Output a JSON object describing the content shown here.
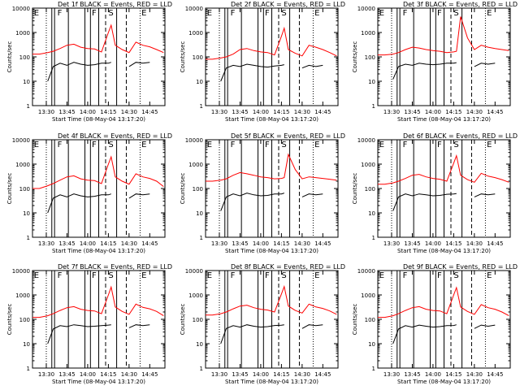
{
  "figure": {
    "xlabel": "Start Time (08-May-04 13:17:20)",
    "ylabel": "Counts/sec",
    "title_suffix": " BLACK = Events, RED = LLD",
    "y_tick_labels": [
      "1",
      "10",
      "100",
      "1000",
      "10000"
    ],
    "x_tick_labels": [
      "13:30",
      "13:45",
      "14:00",
      "14:15",
      "14:30",
      "14:45"
    ],
    "colors": {
      "events": "#000000",
      "lld": "#ff0000"
    }
  },
  "chart_data": [
    {
      "type": "line",
      "title": "Det 1f BLACK = Events, RED = LLD",
      "detector": "Det 1f",
      "xlim": [
        "13:20",
        "14:56"
      ],
      "ylim": [
        1,
        10000
      ],
      "yscale": "log",
      "region_markers": [
        "E",
        "F",
        "F",
        "S",
        "E"
      ],
      "series": [
        {
          "name": "BLACK = Events",
          "x": [
            "13:25",
            "13:31",
            "13:35",
            "13:40",
            "13:45",
            "13:50",
            "13:55",
            "14:00",
            "14:05",
            "14:10",
            "14:15",
            "14:17",
            "14:20",
            "14:30",
            "14:35",
            "14:40",
            "14:45",
            "14:55"
          ],
          "y": [
            null,
            10,
            40,
            55,
            45,
            60,
            50,
            45,
            48,
            55,
            55,
            60,
            null,
            40,
            60,
            55,
            60,
            null
          ]
        },
        {
          "name": "RED = LLD",
          "x": [
            "13:20",
            "13:25",
            "13:31",
            "13:35",
            "13:40",
            "13:45",
            "13:50",
            "13:55",
            "14:00",
            "14:05",
            "14:10",
            "14:15",
            "14:17",
            "14:20",
            "14:25",
            "14:30",
            "14:35",
            "14:40",
            "14:45",
            "14:50",
            "14:55"
          ],
          "y": [
            130,
            130,
            150,
            170,
            220,
            300,
            330,
            250,
            220,
            210,
            160,
            1000,
            2000,
            300,
            200,
            150,
            400,
            300,
            260,
            200,
            150
          ]
        }
      ]
    },
    {
      "type": "line",
      "title": "Det 2f BLACK = Events, RED = LLD",
      "detector": "Det 2f",
      "xlim": [
        "13:20",
        "14:56"
      ],
      "ylim": [
        1,
        10000
      ],
      "yscale": "log",
      "region_markers": [
        "E",
        "F",
        "F",
        "S",
        "E"
      ],
      "series": [
        {
          "name": "BLACK = Events",
          "x": [
            "13:25",
            "13:31",
            "13:35",
            "13:40",
            "13:45",
            "13:50",
            "13:55",
            "14:00",
            "14:05",
            "14:10",
            "14:15",
            "14:17",
            "14:20",
            "14:30",
            "14:35",
            "14:40",
            "14:45",
            "14:55"
          ],
          "y": [
            null,
            10,
            35,
            45,
            40,
            50,
            45,
            40,
            38,
            42,
            45,
            48,
            null,
            35,
            45,
            40,
            45,
            null
          ]
        },
        {
          "name": "RED = LLD",
          "x": [
            "13:20",
            "13:25",
            "13:31",
            "13:35",
            "13:40",
            "13:45",
            "13:50",
            "13:55",
            "14:00",
            "14:05",
            "14:10",
            "14:15",
            "14:17",
            "14:20",
            "14:25",
            "14:30",
            "14:35",
            "14:40",
            "14:45",
            "14:50",
            "14:55"
          ],
          "y": [
            80,
            80,
            90,
            100,
            130,
            200,
            220,
            180,
            160,
            150,
            120,
            700,
            1500,
            200,
            140,
            110,
            300,
            250,
            200,
            150,
            110
          ]
        }
      ]
    },
    {
      "type": "line",
      "title": "Det 3f BLACK = Events, RED = LLD",
      "detector": "Det 3f",
      "xlim": [
        "13:20",
        "14:56"
      ],
      "ylim": [
        1,
        10000
      ],
      "yscale": "log",
      "region_markers": [
        "E",
        "F",
        "F",
        "S",
        "E"
      ],
      "series": [
        {
          "name": "BLACK = Events",
          "x": [
            "13:25",
            "13:31",
            "13:35",
            "13:40",
            "13:45",
            "13:50",
            "13:55",
            "14:00",
            "14:05",
            "14:10",
            "14:15",
            "14:17",
            "14:20",
            "14:30",
            "14:35",
            "14:40",
            "14:45",
            "14:55"
          ],
          "y": [
            null,
            12,
            40,
            50,
            45,
            55,
            50,
            48,
            50,
            55,
            55,
            58,
            null,
            40,
            55,
            50,
            55,
            null
          ]
        },
        {
          "name": "RED = LLD",
          "x": [
            "13:20",
            "13:25",
            "13:31",
            "13:35",
            "13:40",
            "13:45",
            "13:50",
            "13:55",
            "14:00",
            "14:05",
            "14:10",
            "14:15",
            "14:17",
            "14:20",
            "14:25",
            "14:30",
            "14:35",
            "14:40",
            "14:45",
            "14:50",
            "14:55"
          ],
          "y": [
            120,
            120,
            130,
            150,
            200,
            250,
            230,
            200,
            180,
            170,
            150,
            160,
            170,
            4500,
            600,
            200,
            300,
            250,
            220,
            200,
            180
          ]
        }
      ]
    },
    {
      "type": "line",
      "title": "Det 4f BLACK = Events, RED = LLD",
      "detector": "Det 4f",
      "xlim": [
        "13:20",
        "14:56"
      ],
      "ylim": [
        1,
        10000
      ],
      "yscale": "log",
      "region_markers": [
        "E",
        "F",
        "F",
        "S",
        "E"
      ],
      "series": [
        {
          "name": "BLACK = Events",
          "x": [
            "13:25",
            "13:31",
            "13:35",
            "13:40",
            "13:45",
            "13:50",
            "13:55",
            "14:00",
            "14:05",
            "14:10",
            "14:15",
            "14:17",
            "14:20",
            "14:30",
            "14:35",
            "14:40",
            "14:45",
            "14:55"
          ],
          "y": [
            null,
            10,
            40,
            55,
            45,
            60,
            50,
            45,
            48,
            55,
            55,
            60,
            null,
            40,
            60,
            55,
            60,
            null
          ]
        },
        {
          "name": "RED = LLD",
          "x": [
            "13:20",
            "13:25",
            "13:31",
            "13:35",
            "13:40",
            "13:45",
            "13:50",
            "13:55",
            "14:00",
            "14:05",
            "14:10",
            "14:15",
            "14:17",
            "14:20",
            "14:25",
            "14:30",
            "14:35",
            "14:40",
            "14:45",
            "14:50",
            "14:55"
          ],
          "y": [
            100,
            100,
            130,
            160,
            220,
            300,
            330,
            250,
            220,
            210,
            160,
            1000,
            2000,
            300,
            200,
            150,
            400,
            300,
            260,
            200,
            120
          ]
        }
      ]
    },
    {
      "type": "line",
      "title": "Det 5f BLACK = Events, RED = LLD",
      "detector": "Det 5f",
      "xlim": [
        "13:20",
        "14:56"
      ],
      "ylim": [
        1,
        10000
      ],
      "yscale": "log",
      "region_markers": [
        "E",
        "F",
        "F",
        "S",
        "E"
      ],
      "series": [
        {
          "name": "BLACK = Events",
          "x": [
            "13:25",
            "13:31",
            "13:35",
            "13:40",
            "13:45",
            "13:50",
            "13:55",
            "14:00",
            "14:05",
            "14:10",
            "14:15",
            "14:17",
            "14:20",
            "14:30",
            "14:35",
            "14:40",
            "14:45",
            "14:55"
          ],
          "y": [
            null,
            12,
            45,
            60,
            50,
            65,
            55,
            50,
            52,
            60,
            60,
            65,
            null,
            45,
            60,
            55,
            60,
            null
          ]
        },
        {
          "name": "RED = LLD",
          "x": [
            "13:20",
            "13:25",
            "13:31",
            "13:35",
            "13:40",
            "13:45",
            "13:50",
            "13:55",
            "14:00",
            "14:05",
            "14:10",
            "14:15",
            "14:17",
            "14:20",
            "14:25",
            "14:30",
            "14:35",
            "14:40",
            "14:45",
            "14:50",
            "14:55"
          ],
          "y": [
            200,
            200,
            220,
            250,
            350,
            450,
            400,
            350,
            300,
            280,
            250,
            260,
            280,
            2500,
            600,
            250,
            300,
            280,
            260,
            240,
            220
          ]
        }
      ]
    },
    {
      "type": "line",
      "title": "Det 6f BLACK = Events, RED = LLD",
      "detector": "Det 6f",
      "xlim": [
        "13:20",
        "14:56"
      ],
      "ylim": [
        1,
        10000
      ],
      "yscale": "log",
      "region_markers": [
        "E",
        "F",
        "F",
        "S",
        "E"
      ],
      "series": [
        {
          "name": "BLACK = Events",
          "x": [
            "13:25",
            "13:31",
            "13:35",
            "13:40",
            "13:45",
            "13:50",
            "13:55",
            "14:00",
            "14:05",
            "14:10",
            "14:15",
            "14:17",
            "14:20",
            "14:30",
            "14:35",
            "14:40",
            "14:45",
            "14:55"
          ],
          "y": [
            null,
            12,
            45,
            60,
            50,
            60,
            55,
            50,
            52,
            58,
            60,
            62,
            null,
            45,
            60,
            55,
            60,
            null
          ]
        },
        {
          "name": "RED = LLD",
          "x": [
            "13:20",
            "13:25",
            "13:31",
            "13:35",
            "13:40",
            "13:45",
            "13:50",
            "13:55",
            "14:00",
            "14:05",
            "14:10",
            "14:15",
            "14:17",
            "14:20",
            "14:25",
            "14:30",
            "14:35",
            "14:40",
            "14:45",
            "14:50",
            "14:55"
          ],
          "y": [
            150,
            150,
            170,
            200,
            260,
            350,
            380,
            300,
            260,
            240,
            200,
            1100,
            2200,
            350,
            230,
            180,
            420,
            320,
            280,
            230,
            180
          ]
        }
      ]
    },
    {
      "type": "line",
      "title": "Det 7f BLACK = Events, RED = LLD",
      "detector": "Det 7f",
      "xlim": [
        "13:20",
        "14:56"
      ],
      "ylim": [
        1,
        10000
      ],
      "yscale": "log",
      "region_markers": [
        "E",
        "F",
        "F",
        "S",
        "E"
      ],
      "series": [
        {
          "name": "BLACK = Events",
          "x": [
            "13:25",
            "13:31",
            "13:35",
            "13:40",
            "13:45",
            "13:50",
            "13:55",
            "14:00",
            "14:05",
            "14:10",
            "14:15",
            "14:17",
            "14:20",
            "14:30",
            "14:35",
            "14:40",
            "14:45",
            "14:55"
          ],
          "y": [
            null,
            10,
            40,
            55,
            50,
            60,
            55,
            50,
            52,
            55,
            58,
            60,
            null,
            45,
            60,
            55,
            60,
            null
          ]
        },
        {
          "name": "RED = LLD",
          "x": [
            "13:20",
            "13:25",
            "13:31",
            "13:35",
            "13:40",
            "13:45",
            "13:50",
            "13:55",
            "14:00",
            "14:05",
            "14:10",
            "14:15",
            "14:17",
            "14:20",
            "14:25",
            "14:30",
            "14:35",
            "14:40",
            "14:45",
            "14:50",
            "14:55"
          ],
          "y": [
            120,
            120,
            140,
            170,
            230,
            300,
            330,
            260,
            230,
            220,
            170,
            1000,
            2100,
            320,
            210,
            160,
            420,
            310,
            270,
            210,
            140
          ]
        }
      ]
    },
    {
      "type": "line",
      "title": "Det 8f BLACK = Events, RED = LLD",
      "detector": "Det 8f",
      "xlim": [
        "13:20",
        "14:56"
      ],
      "ylim": [
        1,
        10000
      ],
      "yscale": "log",
      "region_markers": [
        "E",
        "F",
        "F",
        "S",
        "E"
      ],
      "series": [
        {
          "name": "BLACK = Events",
          "x": [
            "13:25",
            "13:31",
            "13:35",
            "13:40",
            "13:45",
            "13:50",
            "13:55",
            "14:00",
            "14:05",
            "14:10",
            "14:15",
            "14:17",
            "14:20",
            "14:30",
            "14:35",
            "14:40",
            "14:45",
            "14:55"
          ],
          "y": [
            null,
            10,
            42,
            55,
            48,
            60,
            52,
            48,
            50,
            56,
            57,
            60,
            null,
            42,
            60,
            55,
            60,
            null
          ]
        },
        {
          "name": "RED = LLD",
          "x": [
            "13:20",
            "13:25",
            "13:31",
            "13:35",
            "13:40",
            "13:45",
            "13:50",
            "13:55",
            "14:00",
            "14:05",
            "14:10",
            "14:15",
            "14:17",
            "14:20",
            "14:25",
            "14:30",
            "14:35",
            "14:40",
            "14:45",
            "14:50",
            "14:55"
          ],
          "y": [
            150,
            150,
            170,
            200,
            270,
            350,
            380,
            300,
            260,
            240,
            200,
            1100,
            2200,
            350,
            230,
            180,
            420,
            320,
            280,
            220,
            160
          ]
        }
      ]
    },
    {
      "type": "line",
      "title": "Det 9f BLACK = Events, RED = LLD",
      "detector": "Det 9f",
      "xlim": [
        "13:20",
        "14:56"
      ],
      "ylim": [
        1,
        10000
      ],
      "yscale": "log",
      "region_markers": [
        "E",
        "F",
        "F",
        "S",
        "E"
      ],
      "series": [
        {
          "name": "BLACK = Events",
          "x": [
            "13:25",
            "13:31",
            "13:35",
            "13:40",
            "13:45",
            "13:50",
            "13:55",
            "14:00",
            "14:05",
            "14:10",
            "14:15",
            "14:17",
            "14:20",
            "14:30",
            "14:35",
            "14:40",
            "14:45",
            "14:55"
          ],
          "y": [
            null,
            10,
            40,
            55,
            48,
            58,
            52,
            48,
            50,
            55,
            56,
            60,
            null,
            42,
            58,
            52,
            58,
            null
          ]
        },
        {
          "name": "RED = LLD",
          "x": [
            "13:20",
            "13:25",
            "13:31",
            "13:35",
            "13:40",
            "13:45",
            "13:50",
            "13:55",
            "14:00",
            "14:05",
            "14:10",
            "14:15",
            "14:17",
            "14:20",
            "14:25",
            "14:30",
            "14:35",
            "14:40",
            "14:45",
            "14:50",
            "14:55"
          ],
          "y": [
            120,
            120,
            140,
            170,
            230,
            300,
            330,
            260,
            230,
            220,
            170,
            1000,
            2000,
            320,
            210,
            160,
            400,
            300,
            260,
            200,
            140
          ]
        }
      ]
    }
  ]
}
